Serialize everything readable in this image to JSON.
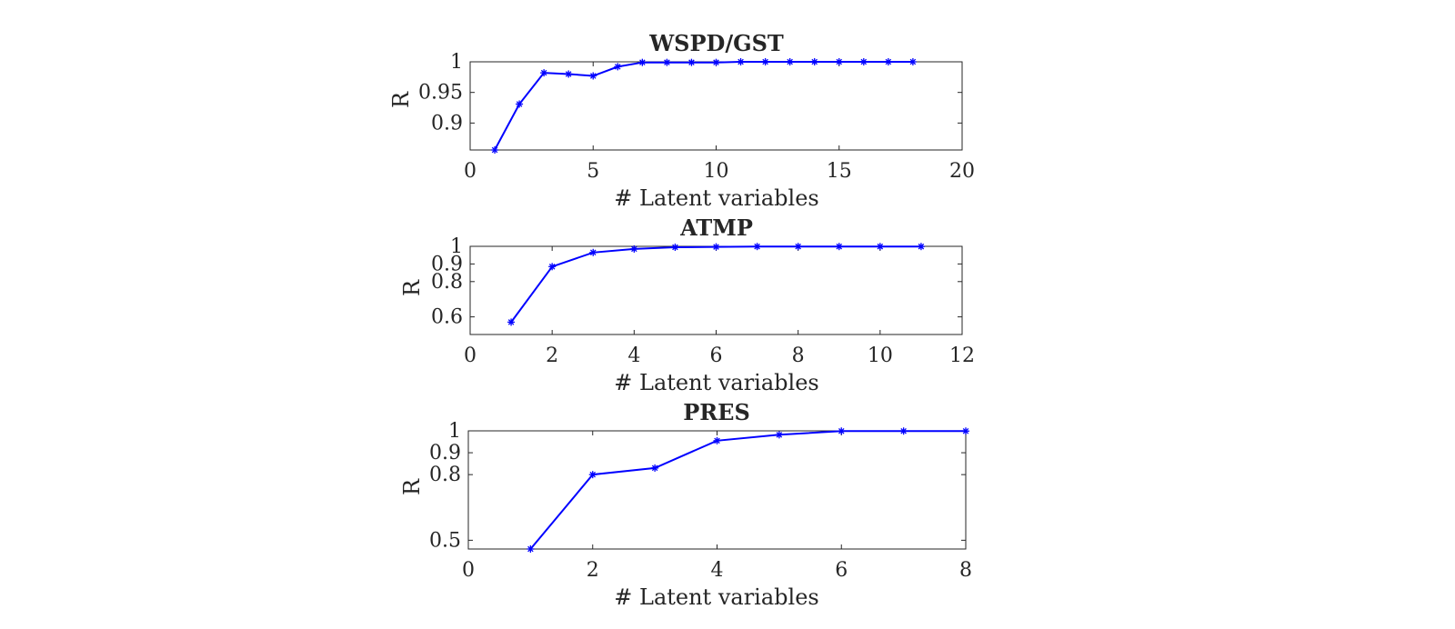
{
  "chart_data": [
    {
      "type": "line",
      "title": "WSPD/GST",
      "xlabel": "# Latent variables",
      "ylabel": "R",
      "xlim": [
        0,
        20
      ],
      "ylim": [
        0.856,
        1.0
      ],
      "xticks": [
        0,
        5,
        10,
        15,
        20
      ],
      "yticks": [
        0.9,
        0.95,
        1
      ],
      "xtick_labels": [
        "0",
        "5",
        "10",
        "15",
        "20"
      ],
      "ytick_labels": [
        "0.9",
        "0.95",
        "1"
      ],
      "grid": false,
      "color": "#0000ff",
      "marker": "asterisk",
      "x": [
        1,
        2,
        3,
        4,
        5,
        6,
        7,
        8,
        9,
        10,
        11,
        12,
        13,
        14,
        15,
        16,
        17,
        18
      ],
      "y": [
        0.856,
        0.931,
        0.982,
        0.98,
        0.977,
        0.992,
        0.999,
        0.999,
        0.999,
        0.999,
        1.0,
        1.0,
        1.0,
        1.0,
        1.0,
        1.0,
        1.0,
        1.0
      ]
    },
    {
      "type": "line",
      "title": "ATMP",
      "xlabel": "# Latent variables",
      "ylabel": "R",
      "xlim": [
        0,
        12
      ],
      "ylim": [
        0.5,
        1.0
      ],
      "xticks": [
        0,
        2,
        4,
        6,
        8,
        10,
        12
      ],
      "yticks": [
        0.6,
        0.8,
        0.9,
        1
      ],
      "xtick_labels": [
        "0",
        "2",
        "4",
        "6",
        "8",
        "10",
        "12"
      ],
      "ytick_labels": [
        "0.6",
        "0.8",
        "0.9",
        "1"
      ],
      "grid": false,
      "color": "#0000ff",
      "marker": "asterisk",
      "x": [
        1,
        2,
        3,
        4,
        5,
        6,
        7,
        8,
        9,
        10,
        11
      ],
      "y": [
        0.57,
        0.885,
        0.965,
        0.985,
        0.995,
        0.997,
        0.999,
        0.999,
        0.999,
        0.999,
        0.999
      ]
    },
    {
      "type": "line",
      "title": "PRES",
      "xlabel": "# Latent variables",
      "ylabel": "R",
      "xlim": [
        0,
        8
      ],
      "ylim": [
        0.46,
        1.0
      ],
      "xticks": [
        0,
        2,
        4,
        6,
        8
      ],
      "yticks": [
        0.5,
        0.8,
        0.9,
        1
      ],
      "xtick_labels": [
        "0",
        "2",
        "4",
        "6",
        "8"
      ],
      "ytick_labels": [
        "0.5",
        "0.8",
        "0.9",
        "1"
      ],
      "grid": false,
      "color": "#0000ff",
      "marker": "asterisk",
      "x": [
        1,
        2,
        3,
        4,
        5,
        6,
        7,
        8
      ],
      "y": [
        0.46,
        0.8,
        0.83,
        0.955,
        0.982,
        0.999,
        0.999,
        0.999
      ]
    }
  ]
}
